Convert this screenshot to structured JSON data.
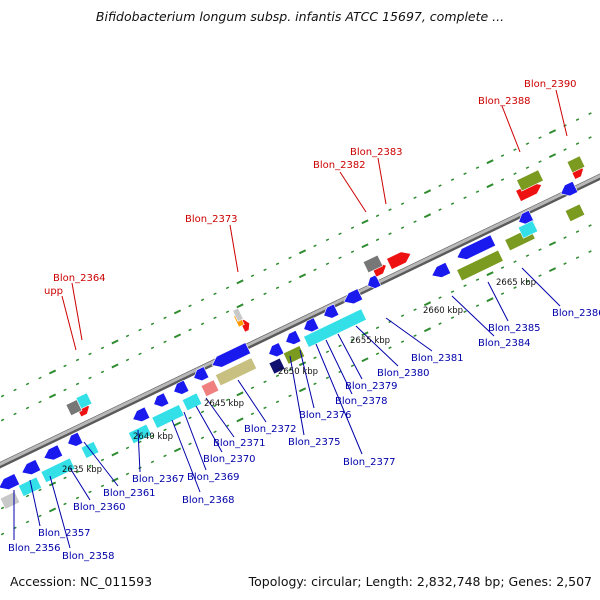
{
  "header": {
    "title": "Bifidobacterium longum subsp. infantis ATCC 15697, complete ..."
  },
  "footer": {
    "accession": "Accession: NC_011593",
    "summary": "Topology: circular; Length: 2,832,748 bp; Genes: 2,507"
  },
  "colors": {
    "backbone": "#8c8c8c",
    "tick": "#2e8b2e",
    "forward_label": "#cc0000",
    "reverse_label": "#0000aa",
    "blue": "#1a1aee",
    "cyan": "#33e0e8",
    "red": "#ee1111",
    "olive": "#7a9a20",
    "gray": "#777777",
    "lightgray": "#c8c8c8",
    "navy": "#101070",
    "pink": "#f08080",
    "khaki": "#c8c080",
    "orange": "#ff9900"
  },
  "scale_labels": [
    "2635 kbp",
    "2640 kbp",
    "2645 kbp",
    "2650 kbp",
    "2655 kbp",
    "2660 kbp",
    "2665 kbp"
  ],
  "forward_labels": [
    "Blon_2364",
    "upp",
    "Blon_2373",
    "Blon_2382",
    "Blon_2383",
    "Blon_2388",
    "Blon_2390"
  ],
  "reverse_labels": [
    "Blon_2356",
    "Blon_2357",
    "Blon_2358",
    "Blon_2360",
    "Blon_2361",
    "Blon_2367",
    "Blon_2368",
    "Blon_2369",
    "Blon_2370",
    "Blon_2371",
    "Blon_2372",
    "Blon_2375",
    "Blon_2376",
    "Blon_2377",
    "Blon_2378",
    "Blon_2379",
    "Blon_2380",
    "Blon_2381",
    "Blon_2384",
    "Blon_2385",
    "Blon_2386"
  ]
}
